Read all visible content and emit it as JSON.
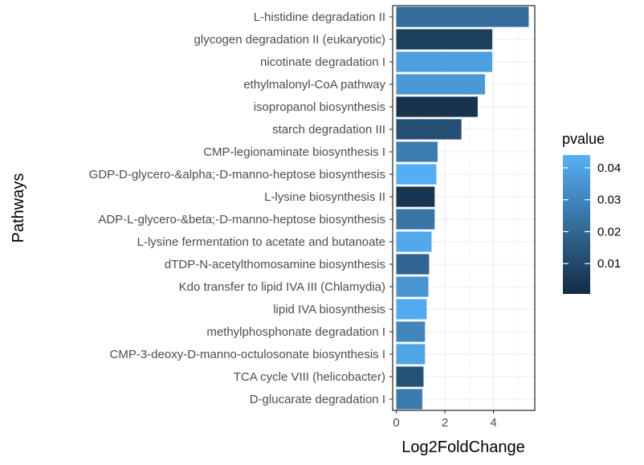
{
  "chart_data": {
    "type": "bar",
    "orientation": "horizontal",
    "title": "",
    "xlabel": "Log2FoldChange",
    "ylabel": "Pathways",
    "xlim": [
      -0.15,
      5.7
    ],
    "x_ticks": [
      0,
      2,
      4
    ],
    "grid": true,
    "categories": [
      "L-histidine degradation II",
      "glycogen degradation II (eukaryotic)",
      "nicotinate degradation I",
      "ethylmalonyl-CoA pathway",
      "isopropanol biosynthesis",
      "starch degradation III",
      "CMP-legionaminate biosynthesis I",
      "GDP-D-glycero-&alpha;-D-manno-heptose biosynthesis",
      "L-lysine biosynthesis II",
      "ADP-L-glycero-&beta;-D-manno-heptose biosynthesis",
      "L-lysine fermentation to acetate and butanoate",
      "dTDP-N-acetylthomosamine biosynthesis",
      "Kdo transfer to lipid IVA III (Chlamydia)",
      "lipid IVA biosynthesis",
      "methylphosphonate degradation I",
      "CMP-3-deoxy-D-manno-octulosonate biosynthesis I",
      "TCA cycle VIII (helicobacter)",
      "D-glucarate degradation I"
    ],
    "values": [
      5.45,
      3.95,
      3.95,
      3.65,
      3.35,
      2.68,
      1.7,
      1.65,
      1.58,
      1.58,
      1.45,
      1.35,
      1.32,
      1.25,
      1.18,
      1.18,
      1.12,
      1.07
    ],
    "pvalue": [
      0.022,
      0.007,
      0.038,
      0.036,
      0.003,
      0.012,
      0.027,
      0.043,
      0.004,
      0.025,
      0.041,
      0.019,
      0.035,
      0.042,
      0.03,
      0.04,
      0.013,
      0.026
    ],
    "legend": {
      "title": "pvalue",
      "placement": "right",
      "min": 0.0005,
      "max": 0.044,
      "ticks": [
        {
          "value": 0.01,
          "label": "0.01"
        },
        {
          "value": 0.02,
          "label": "0.02"
        },
        {
          "value": 0.03,
          "label": "0.03"
        },
        {
          "value": 0.04,
          "label": "0.04"
        }
      ],
      "color_low": "#132B43",
      "color_high": "#56B1F7"
    }
  }
}
